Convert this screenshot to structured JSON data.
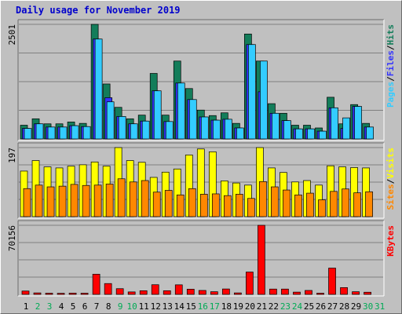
{
  "title": "Daily usage for November 2019",
  "colors": {
    "pages": "#137d5a",
    "files": "#3333ff",
    "hits": "#33ccff",
    "visits": "#ffff00",
    "sites": "#ff8800",
    "kbytes": "#ff0000",
    "weekday_label": "#000000",
    "weekend_label": "#00aa55",
    "panel_bg": "#c0c0c0"
  },
  "chart_data": [
    {
      "type": "bar",
      "panel": "hits",
      "max_label": "2501",
      "ylim": [
        0,
        2501
      ],
      "legend": [
        "Pages",
        "/",
        "Files",
        "/",
        "Hits"
      ],
      "legend_colors": [
        "#33ccff",
        "#000000",
        "#3333ff",
        "#000000",
        "#137d5a"
      ],
      "categories": [
        "1",
        "2",
        "3",
        "4",
        "5",
        "6",
        "7",
        "8",
        "9",
        "10",
        "11",
        "12",
        "13",
        "14",
        "15",
        "16",
        "17",
        "18",
        "19",
        "20",
        "21",
        "22",
        "23",
        "24",
        "25",
        "26",
        "27",
        "28",
        "29",
        "30",
        "31"
      ],
      "series": [
        {
          "name": "Pages",
          "values": [
            300,
            440,
            330,
            330,
            370,
            340,
            2501,
            1200,
            690,
            440,
            520,
            1430,
            520,
            1700,
            1100,
            630,
            510,
            570,
            340,
            2290,
            1700,
            770,
            560,
            300,
            300,
            240,
            910,
            330,
            750,
            340,
            0
          ]
        },
        {
          "name": "Files",
          "values": [
            230,
            330,
            260,
            260,
            290,
            270,
            2180,
            900,
            490,
            330,
            390,
            1050,
            380,
            1220,
            860,
            480,
            410,
            430,
            240,
            2060,
            1030,
            560,
            400,
            220,
            220,
            170,
            680,
            230,
            710,
            260,
            0
          ]
        },
        {
          "name": "Hits",
          "values": [
            230,
            330,
            260,
            260,
            290,
            270,
            2180,
            810,
            490,
            330,
            390,
            1050,
            380,
            1220,
            860,
            480,
            410,
            430,
            240,
            2060,
            1700,
            560,
            400,
            220,
            220,
            170,
            680,
            460,
            710,
            260,
            0
          ]
        }
      ]
    },
    {
      "type": "bar",
      "panel": "visits",
      "max_label": "197",
      "ylim": [
        0,
        197
      ],
      "legend": [
        "Sites",
        "/",
        "Visits"
      ],
      "legend_colors": [
        "#ff8800",
        "#000000",
        "#ffff00"
      ],
      "categories": [
        "1",
        "2",
        "3",
        "4",
        "5",
        "6",
        "7",
        "8",
        "9",
        "10",
        "11",
        "12",
        "13",
        "14",
        "15",
        "16",
        "17",
        "18",
        "19",
        "20",
        "21",
        "22",
        "23",
        "24",
        "25",
        "26",
        "27",
        "28",
        "29",
        "30",
        "31"
      ],
      "series": [
        {
          "name": "Visits",
          "values": [
            130,
            160,
            142,
            139,
            144,
            148,
            156,
            144,
            197,
            160,
            155,
            112,
            127,
            136,
            176,
            193,
            185,
            102,
            96,
            90,
            197,
            139,
            126,
            99,
            103,
            90,
            145,
            142,
            140,
            139,
            0
          ]
        },
        {
          "name": "Sites",
          "values": [
            80,
            90,
            85,
            87,
            92,
            89,
            90,
            93,
            108,
            99,
            103,
            70,
            75,
            62,
            80,
            64,
            65,
            60,
            64,
            52,
            100,
            85,
            76,
            62,
            67,
            48,
            72,
            79,
            68,
            71,
            0
          ]
        }
      ]
    },
    {
      "type": "bar",
      "panel": "kbytes",
      "max_label": "70156",
      "ylim": [
        0,
        70156
      ],
      "legend": [
        "KBytes"
      ],
      "legend_colors": [
        "#ff0000"
      ],
      "categories": [
        "1",
        "2",
        "3",
        "4",
        "5",
        "6",
        "7",
        "8",
        "9",
        "10",
        "11",
        "12",
        "13",
        "14",
        "15",
        "16",
        "17",
        "18",
        "19",
        "20",
        "21",
        "22",
        "23",
        "24",
        "25",
        "26",
        "27",
        "28",
        "29",
        "30",
        "31"
      ],
      "series": [
        {
          "name": "KBytes",
          "values": [
            3400,
            1500,
            1200,
            1100,
            1300,
            1200,
            20500,
            11000,
            5800,
            2500,
            3700,
            9800,
            3700,
            9700,
            5300,
            4000,
            2700,
            5500,
            1500,
            22700,
            70156,
            5400,
            5400,
            2300,
            4000,
            1200,
            26700,
            6900,
            2700,
            2200,
            0
          ]
        }
      ]
    }
  ]
}
